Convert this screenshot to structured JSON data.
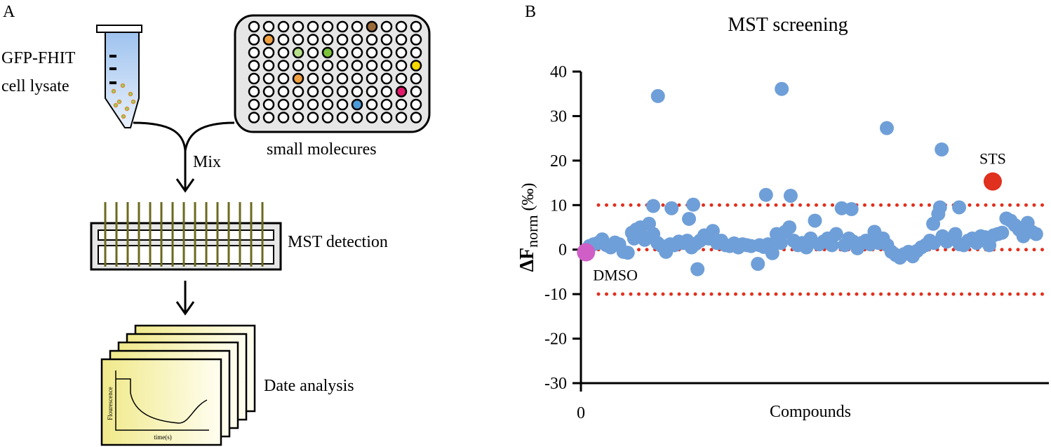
{
  "panel_a": {
    "label": "A",
    "tube_label": [
      "GFP-FHIT",
      "cell lysate"
    ],
    "plate_label": "small molecures",
    "mix_label": "Mix",
    "detection_label": "MST detection",
    "analysis_label": "Date analysis",
    "graph_y_label": "Flourescence",
    "graph_x_label": "time(s)"
  },
  "chart_data": {
    "type": "scatter",
    "panel_label": "B",
    "title": "MST screening",
    "y_label": {
      "main": "ΔF",
      "sub": "norm",
      "unit": "(‰)"
    },
    "x_label": "Compounds",
    "xlim": [
      0,
      110
    ],
    "xticks": [
      0
    ],
    "ylim": [
      -30,
      40
    ],
    "yticks": [
      -30,
      -20,
      -10,
      0,
      10,
      20,
      30,
      40
    ],
    "reference_lines": {
      "values": [
        10,
        0,
        -10
      ],
      "color": "#e0301e"
    },
    "series": [
      {
        "color": "#6f9fd8",
        "x": [
          2,
          3,
          4,
          5,
          6,
          7,
          8,
          9,
          10,
          11,
          12,
          12.5,
          13,
          14,
          14.5,
          15,
          16,
          17,
          18,
          19,
          20,
          21,
          22,
          23,
          24,
          25,
          26,
          27,
          28,
          29,
          30,
          31,
          32,
          33,
          34,
          35,
          36,
          37,
          38,
          39,
          40,
          42,
          43,
          44,
          45,
          46,
          47,
          48,
          49,
          50,
          51,
          52,
          53,
          54,
          56,
          57,
          58,
          59,
          60,
          62,
          63,
          64,
          65,
          66,
          67,
          68,
          69,
          70,
          71,
          72,
          73,
          74,
          75,
          76,
          77,
          78,
          79,
          80,
          81,
          82,
          83,
          85,
          86,
          87,
          88,
          89,
          90,
          91,
          92,
          93,
          94,
          95,
          96,
          97,
          98,
          99,
          100,
          101,
          102,
          103,
          104,
          105,
          106,
          107,
          18.1,
          47.2,
          71.9,
          84.8,
          17,
          21.3,
          26.4,
          43.5,
          49.3,
          61.3,
          63.6,
          84.4,
          88.9,
          25.4,
          27.4,
          41.6,
          55,
          82.8,
          84
        ],
        "y": [
          0.8,
          1.2,
          1.5,
          2.3,
          1.0,
          0.5,
          1.6,
          1.2,
          -0.5,
          -0.7,
          3.8,
          2.5,
          4.5,
          5.0,
          3.0,
          2.2,
          5.8,
          3.5,
          1.5,
          0.8,
          -0.5,
          1.2,
          1.0,
          1.8,
          1.5,
          2.0,
          0.5,
          1.3,
          2.0,
          3.2,
          2.5,
          4.2,
          1.5,
          2.0,
          1.0,
          0.8,
          1.4,
          0.5,
          1.2,
          1.0,
          0.8,
          1.0,
          0.6,
          1.2,
          -0.8,
          3.5,
          1.5,
          4.0,
          5.0,
          2.0,
          1.0,
          1.5,
          0.5,
          2.5,
          1.2,
          1.8,
          2.5,
          1.0,
          3.5,
          1.0,
          2.5,
          1.8,
          0.3,
          1.5,
          2.0,
          1.2,
          4.0,
          1.5,
          2.5,
          1.0,
          -0.5,
          -1.2,
          -1.8,
          -1.0,
          -0.5,
          -1.5,
          -0.3,
          0.5,
          1.0,
          2.0,
          1.5,
          3.0,
          1.8,
          2.5,
          3.5,
          1.2,
          1.0,
          2.0,
          2.5,
          1.5,
          3.0,
          2.8,
          1.0,
          3.2,
          3.5,
          3.8,
          7.0,
          6.5,
          5.5,
          4.5,
          3.0,
          6.0,
          4.0,
          3.5,
          34.5,
          36.1,
          27.3,
          22.5,
          9.8,
          9.3,
          10.1,
          12.3,
          12.1,
          9.3,
          9.1,
          9.5,
          9.5,
          6.9,
          -4.4,
          -3.2,
          6.5,
          5.8,
          8.0
        ]
      },
      {
        "name": "STS",
        "color": "#e0301e",
        "x": [
          96.8
        ],
        "y": [
          15.3
        ]
      },
      {
        "name": "DMSO",
        "color": "#cf5fc6",
        "x": [
          1.2
        ],
        "y": [
          -0.6
        ]
      }
    ]
  }
}
